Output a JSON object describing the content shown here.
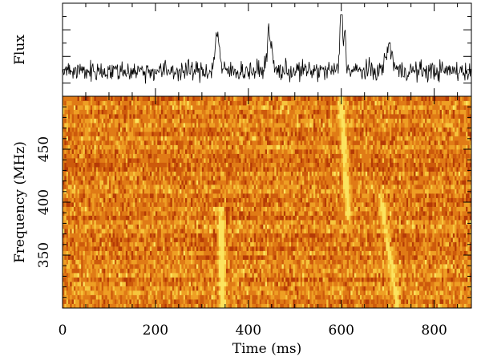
{
  "chart_data": [
    {
      "type": "line",
      "panel": "flux-timeseries",
      "ylabel": "Flux",
      "xlim": [
        0,
        880
      ],
      "grid": false,
      "baseline": 0.3,
      "noise": 0.075,
      "pulses": [
        {
          "t": 333,
          "amp": 0.6,
          "width": 6
        },
        {
          "t": 445,
          "amp": 0.55,
          "width": 7
        },
        {
          "t": 600,
          "amp": 1.0,
          "width": 4
        },
        {
          "t": 608,
          "amp": 0.6,
          "width": 3
        },
        {
          "t": 703,
          "amp": 0.35,
          "width": 10
        }
      ]
    },
    {
      "type": "heatmap",
      "panel": "dynamic-spectrum",
      "title": "",
      "xlabel": "Time (ms)",
      "ylabel": "Frequency (MHz)",
      "xlim": [
        0,
        880
      ],
      "ylim": [
        300,
        500
      ],
      "xticks": [
        0,
        200,
        400,
        600,
        800
      ],
      "yticks": [
        350,
        400,
        450
      ],
      "colormap": [
        "#b53a06",
        "#cd5a0c",
        "#e07b16",
        "#ee9f24",
        "#f6c53d",
        "#fbe35e"
      ],
      "time_bins": 220,
      "freq_channels": 48,
      "pulse_tracks": [
        {
          "f_top": 395,
          "t_top": 340,
          "f_bottom": 305,
          "t_bottom": 345,
          "strength": 0.9
        },
        {
          "f_top": 500,
          "t_top": 600,
          "f_bottom": 390,
          "t_bottom": 615,
          "strength": 0.75
        },
        {
          "f_top": 410,
          "t_top": 683,
          "f_bottom": 305,
          "t_bottom": 720,
          "strength": 0.6
        }
      ]
    }
  ]
}
